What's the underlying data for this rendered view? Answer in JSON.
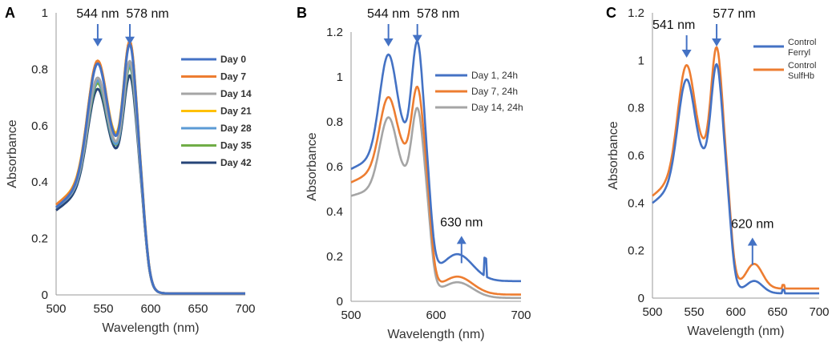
{
  "chart_data": [
    {
      "type": "line",
      "panel_label": "A",
      "xlabel": "Wavelength (nm)",
      "ylabel": "Absorbance",
      "xlim": [
        500,
        700
      ],
      "ylim": [
        0,
        1.0
      ],
      "xticks": [
        500,
        550,
        600,
        650,
        700
      ],
      "yticks": [
        0,
        0.2,
        0.4,
        0.6,
        0.8,
        1.0
      ],
      "ytick_labels": [
        "0",
        "0.2",
        "0.4",
        "0.6",
        "0.8",
        "1"
      ],
      "legend_position": "right",
      "annotations": [
        {
          "text": "544 nm",
          "x": 544
        },
        {
          "text": "578 nm",
          "x": 578
        }
      ],
      "series": [
        {
          "name": "Day 0",
          "color": "#4472c4",
          "peaks": [
            0.82,
            0.87
          ],
          "trough": 0.52,
          "base": 0.31,
          "tail": 0.005
        },
        {
          "name": "Day 7",
          "color": "#ed7d31",
          "peaks": [
            0.83,
            0.88
          ],
          "trough": 0.52,
          "base": 0.32,
          "tail": 0.005
        },
        {
          "name": "Day 14",
          "color": "#a5a5a5",
          "peaks": [
            0.77,
            0.81
          ],
          "trough": 0.51,
          "base": 0.31,
          "tail": 0.005
        },
        {
          "name": "Day 21",
          "color": "#ffc000",
          "peaks": [
            0.83,
            0.88
          ],
          "trough": 0.53,
          "base": 0.32,
          "tail": 0.005
        },
        {
          "name": "Day 28",
          "color": "#5b9bd5",
          "peaks": [
            0.76,
            0.8
          ],
          "trough": 0.5,
          "base": 0.31,
          "tail": 0.005
        },
        {
          "name": "Day 35",
          "color": "#70ad47",
          "peaks": [
            0.75,
            0.79
          ],
          "trough": 0.5,
          "base": 0.31,
          "tail": 0.005
        },
        {
          "name": "Day 42",
          "color": "#264478",
          "peaks": [
            0.73,
            0.76
          ],
          "trough": 0.49,
          "base": 0.3,
          "tail": 0.005
        }
      ]
    },
    {
      "type": "line",
      "panel_label": "B",
      "xlabel": "Wavelength (nm)",
      "ylabel": "Absorbance",
      "xlim": [
        500,
        700
      ],
      "ylim": [
        0,
        1.2
      ],
      "xticks": [
        500,
        600,
        700
      ],
      "yticks": [
        0,
        0.2,
        0.4,
        0.6,
        0.8,
        1.0,
        1.2
      ],
      "ytick_labels": [
        "0",
        "0.2",
        "0.4",
        "0.6",
        "0.8",
        "1",
        "1.2"
      ],
      "legend_position": "right",
      "annotations": [
        {
          "text": "544 nm",
          "x": 544
        },
        {
          "text": "578 nm",
          "x": 578
        },
        {
          "text": "630 nm",
          "x": 630
        }
      ],
      "series": [
        {
          "name": "Day 1, 24h",
          "color": "#4472c4",
          "peaks": [
            1.1,
            1.13
          ],
          "trough": 0.76,
          "base": 0.59,
          "tail": 0.06
        },
        {
          "name": "Day 7, 24h",
          "color": "#ed7d31",
          "peaks": [
            0.91,
            0.93
          ],
          "trough": 0.69,
          "base": 0.53,
          "tail": 0.02
        },
        {
          "name": "Day 14, 24h",
          "color": "#a5a5a5",
          "peaks": [
            0.82,
            0.84
          ],
          "trough": 0.58,
          "base": 0.47,
          "tail": 0.01
        }
      ]
    },
    {
      "type": "line",
      "panel_label": "C",
      "xlabel": "Wavelength (nm)",
      "ylabel": "Absorbance",
      "xlim": [
        500,
        700
      ],
      "ylim": [
        0,
        1.2
      ],
      "xticks": [
        500,
        550,
        600,
        650,
        700
      ],
      "yticks": [
        0,
        0.2,
        0.4,
        0.6,
        0.8,
        1.0,
        1.2
      ],
      "ytick_labels": [
        "0",
        "0.2",
        "0.4",
        "0.6",
        "0.8",
        "1",
        "1.2"
      ],
      "legend_position": "top-right",
      "annotations": [
        {
          "text": "541 nm",
          "x": 541
        },
        {
          "text": "577 nm",
          "x": 577
        },
        {
          "text": "620 nm",
          "x": 620
        }
      ],
      "series": [
        {
          "name_lines": [
            "Control",
            "Ferryl"
          ],
          "color": "#4472c4",
          "peaks": [
            0.92,
            0.96
          ],
          "trough": 0.61,
          "base": 0.4,
          "tail": 0.02
        },
        {
          "name_lines": [
            "Control",
            "SulfHb"
          ],
          "color": "#ed7d31",
          "peaks": [
            0.98,
            1.03
          ],
          "trough": 0.65,
          "base": 0.43,
          "tail": 0.04
        }
      ]
    }
  ]
}
